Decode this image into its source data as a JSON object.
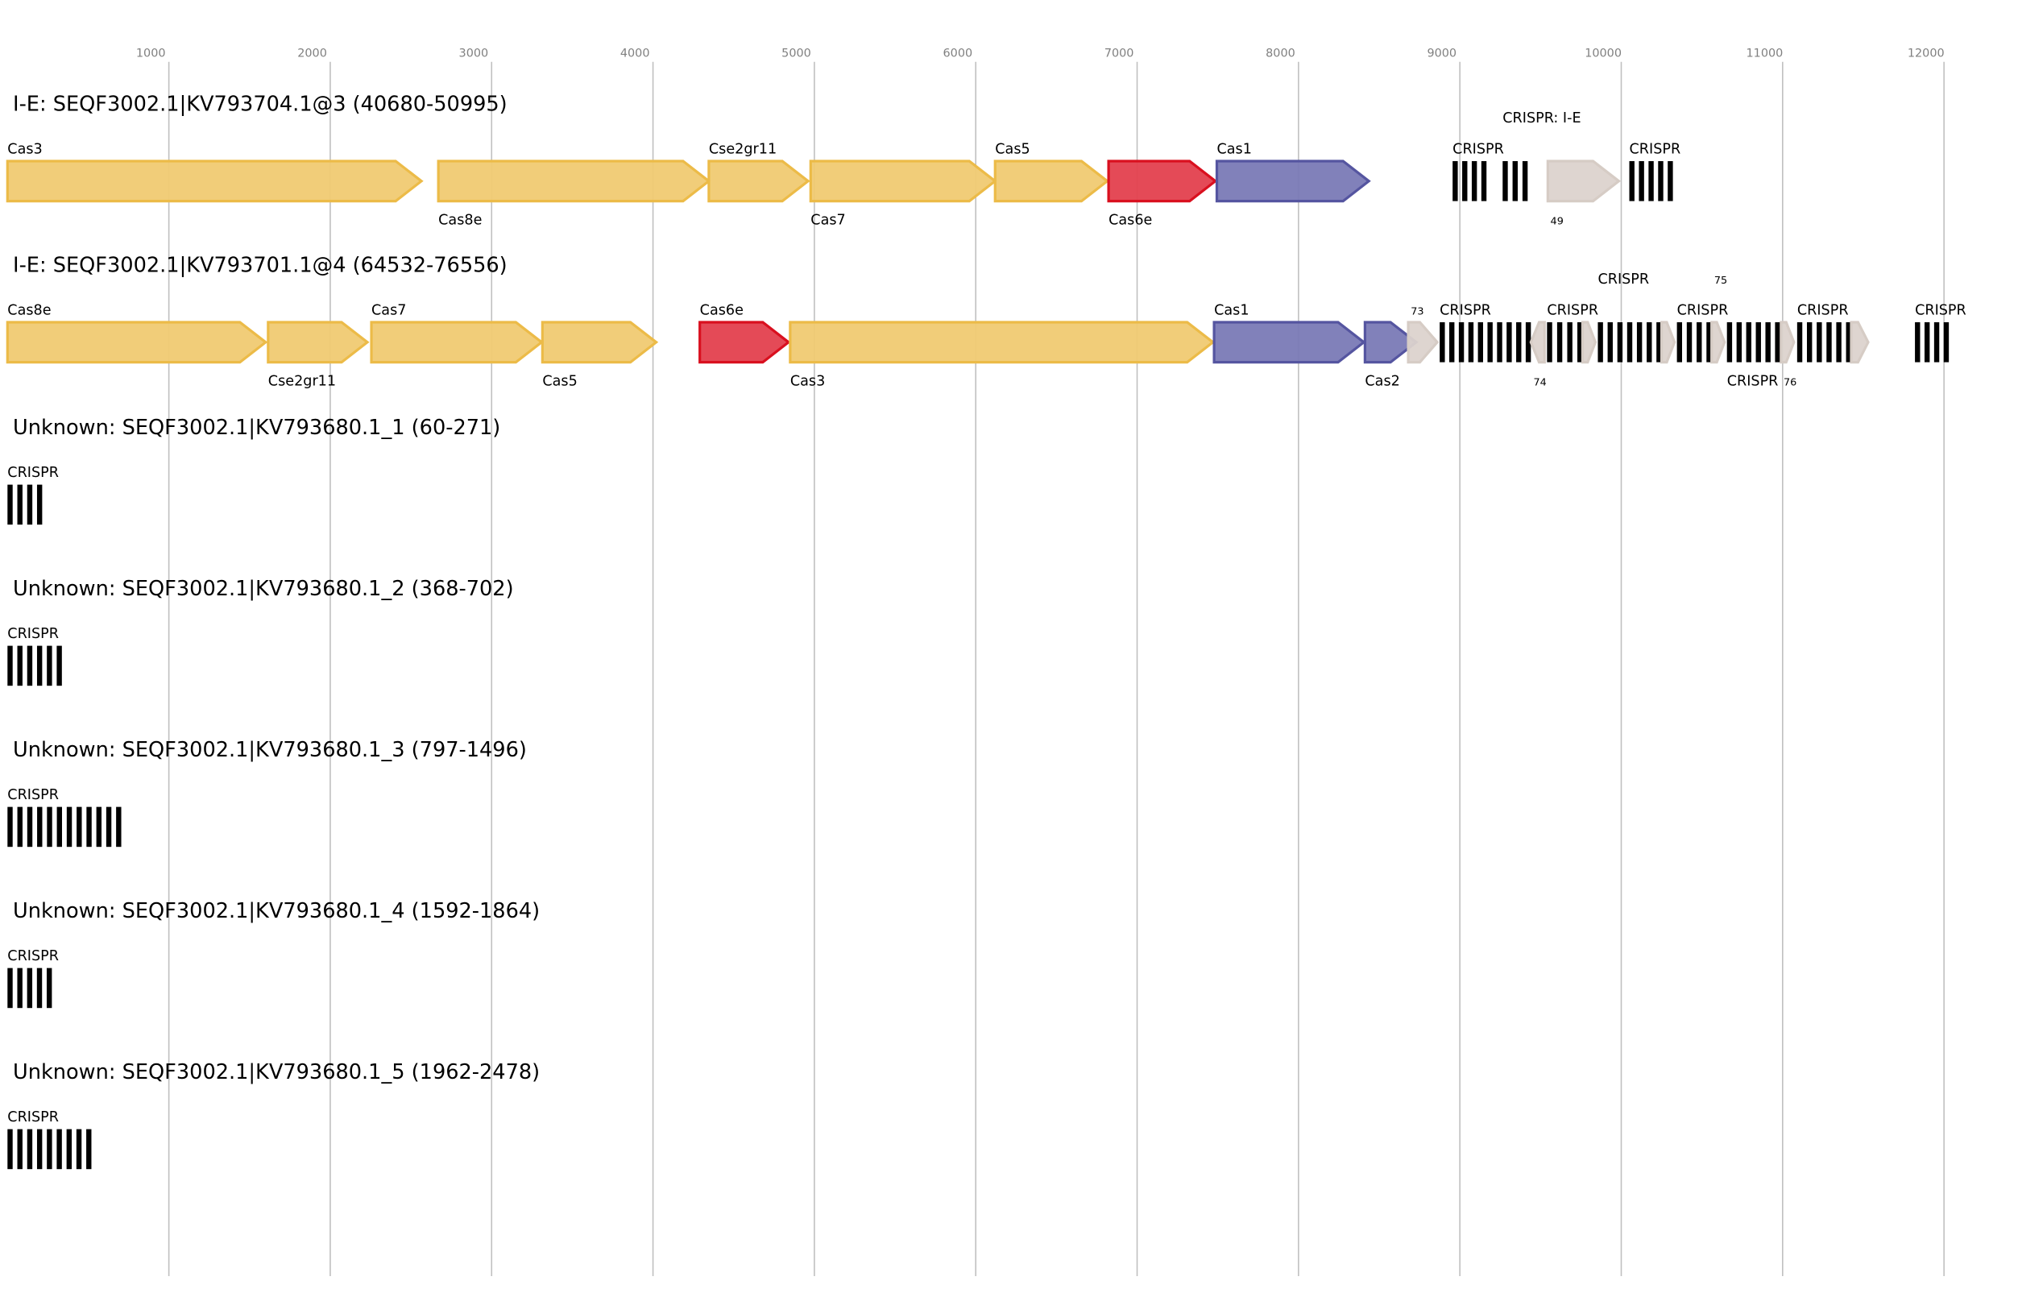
{
  "axis": {
    "ticks": [
      1000,
      2000,
      3000,
      4000,
      5000,
      6000,
      7000,
      8000,
      9000,
      10000,
      11000,
      12000
    ]
  },
  "colors": {
    "yellow": {
      "fill": "#f0ca72",
      "stroke": "#ecbb48"
    },
    "red": {
      "fill": "#e3404e",
      "stroke": "#d9101f"
    },
    "blue": {
      "fill": "#7a7ab6",
      "stroke": "#5555a0"
    },
    "gray": {
      "fill": "#dcd3cd",
      "stroke": "#d6ccc5"
    },
    "crispr": "#000000"
  },
  "loci": [
    {
      "title": "I-E: SEQF3002.1|KV793704.1@3 (40680-50995)",
      "features": [
        {
          "type": "gene",
          "label": "Cas3",
          "start": 0,
          "end": 2565,
          "strand": 1,
          "color": "yellow",
          "pos": "above"
        },
        {
          "type": "gene",
          "label": "Cas8e",
          "start": 2670,
          "end": 4346,
          "strand": 1,
          "color": "yellow",
          "pos": "below"
        },
        {
          "type": "gene",
          "label": "Cse2gr11",
          "start": 4346,
          "end": 4961,
          "strand": 1,
          "color": "yellow",
          "pos": "above"
        },
        {
          "type": "gene",
          "label": "Cas7",
          "start": 4977,
          "end": 6120,
          "strand": 1,
          "color": "yellow",
          "pos": "below"
        },
        {
          "type": "gene",
          "label": "Cas5",
          "start": 6120,
          "end": 6815,
          "strand": 1,
          "color": "yellow",
          "pos": "above"
        },
        {
          "type": "gene",
          "label": "Cas6e",
          "start": 6823,
          "end": 7485,
          "strand": 1,
          "color": "red",
          "pos": "below"
        },
        {
          "type": "gene",
          "label": "Cas1",
          "start": 7494,
          "end": 8436,
          "strand": 1,
          "color": "blue",
          "pos": "above"
        },
        {
          "type": "crispr",
          "label": "CRISPR",
          "start": 8955,
          "end": 9165,
          "spacers": 4
        },
        {
          "type": "crispr",
          "label": "CRISPR: I-E",
          "start": 9265,
          "end": 9420,
          "spacers": 3
        },
        {
          "type": "gene",
          "label": "49",
          "start": 9545,
          "end": 9985,
          "strand": 1,
          "color": "gray",
          "pos": "below",
          "small": true
        },
        {
          "type": "crispr",
          "label": "CRISPR",
          "start": 10050,
          "end": 10320,
          "spacers": 5
        }
      ]
    },
    {
      "title": "I-E: SEQF3002.1|KV793701.1@4 (64532-76556)",
      "features": [
        {
          "type": "gene",
          "label": "Cas8e",
          "start": 0,
          "end": 1600,
          "strand": 1,
          "color": "yellow",
          "pos": "above"
        },
        {
          "type": "gene",
          "label": "Cse2gr11",
          "start": 1615,
          "end": 2230,
          "strand": 1,
          "color": "yellow",
          "pos": "below"
        },
        {
          "type": "gene",
          "label": "Cas7",
          "start": 2255,
          "end": 3310,
          "strand": 1,
          "color": "yellow",
          "pos": "above"
        },
        {
          "type": "gene",
          "label": "Cas5",
          "start": 3315,
          "end": 4020,
          "strand": 1,
          "color": "yellow",
          "pos": "below"
        },
        {
          "type": "gene",
          "label": "Cas6e",
          "start": 4290,
          "end": 4840,
          "strand": 1,
          "color": "red",
          "pos": "above"
        },
        {
          "type": "gene",
          "label": "Cas3",
          "start": 4850,
          "end": 7470,
          "strand": 1,
          "color": "yellow",
          "pos": "below"
        },
        {
          "type": "gene",
          "label": "Cas1",
          "start": 7477,
          "end": 8405,
          "strand": 1,
          "color": "blue",
          "pos": "above"
        },
        {
          "type": "gene",
          "label": "Cas2",
          "start": 8412,
          "end": 8730,
          "strand": 1,
          "color": "blue",
          "pos": "below"
        },
        {
          "type": "gene",
          "label": "73",
          "start": 8680,
          "end": 8860,
          "strand": 1,
          "color": "gray",
          "pos": "above",
          "small": true
        },
        {
          "type": "crispr",
          "label": "CRISPR",
          "start": 8875,
          "end": 9440,
          "spacers": 10
        },
        {
          "type": "gene",
          "label": "74",
          "start": 9440,
          "end": 9525,
          "strand": -1,
          "color": "gray",
          "pos": "below",
          "small": true
        },
        {
          "type": "crispr",
          "label": "CRISPR",
          "start": 9540,
          "end": 9760,
          "spacers": 4
        },
        {
          "type": "gene",
          "label": "",
          "start": 9760,
          "end": 9840,
          "strand": 1,
          "color": "gray",
          "pos": "below"
        },
        {
          "type": "crispr",
          "label": "CRISPR",
          "start": 9855,
          "end": 10250,
          "spacers": 7
        },
        {
          "type": "gene",
          "label": "",
          "start": 10250,
          "end": 10330,
          "strand": 1,
          "color": "gray",
          "pos": "below"
        },
        {
          "type": "crispr",
          "label": "CRISPR",
          "start": 10345,
          "end": 10560,
          "spacers": 4
        },
        {
          "type": "gene",
          "label": "75",
          "start": 10560,
          "end": 10640,
          "strand": 1,
          "color": "gray",
          "pos": "above",
          "small": true
        },
        {
          "type": "crispr",
          "label": "CRISPR",
          "start": 10655,
          "end": 10985,
          "spacers": 6
        },
        {
          "type": "gene",
          "label": "76",
          "start": 10990,
          "end": 11070,
          "strand": 1,
          "color": "gray",
          "pos": "below",
          "small": true
        },
        {
          "type": "crispr",
          "label": "CRISPR",
          "start": 11090,
          "end": 11425,
          "spacers": 6
        },
        {
          "type": "gene",
          "label": "",
          "start": 11425,
          "end": 11530,
          "strand": 1,
          "color": "gray",
          "pos": "below"
        },
        {
          "type": "crispr",
          "label": "CRISPR",
          "start": 11820,
          "end": 12030,
          "spacers": 4
        }
      ]
    },
    {
      "title": "Unknown: SEQF3002.1|KV793680.1_1 (60-271)",
      "features": [
        {
          "type": "crispr",
          "label": "CRISPR",
          "start": 0,
          "end": 215,
          "spacers": 4
        }
      ]
    },
    {
      "title": "Unknown: SEQF3002.1|KV793680.1_2 (368-702)",
      "features": [
        {
          "type": "crispr",
          "label": "CRISPR",
          "start": 0,
          "end": 337,
          "spacers": 6
        }
      ]
    },
    {
      "title": "Unknown: SEQF3002.1|KV793680.1_3 (797-1496)",
      "features": [
        {
          "type": "crispr",
          "label": "CRISPR",
          "start": 0,
          "end": 705,
          "spacers": 12
        }
      ]
    },
    {
      "title": "Unknown: SEQF3002.1|KV793680.1_4 (1592-1864)",
      "features": [
        {
          "type": "crispr",
          "label": "CRISPR",
          "start": 0,
          "end": 275,
          "spacers": 5
        }
      ]
    },
    {
      "title": "Unknown: SEQF3002.1|KV793680.1_5 (1962-2478)",
      "features": [
        {
          "type": "crispr",
          "label": "CRISPR",
          "start": 0,
          "end": 520,
          "spacers": 9
        }
      ]
    }
  ]
}
